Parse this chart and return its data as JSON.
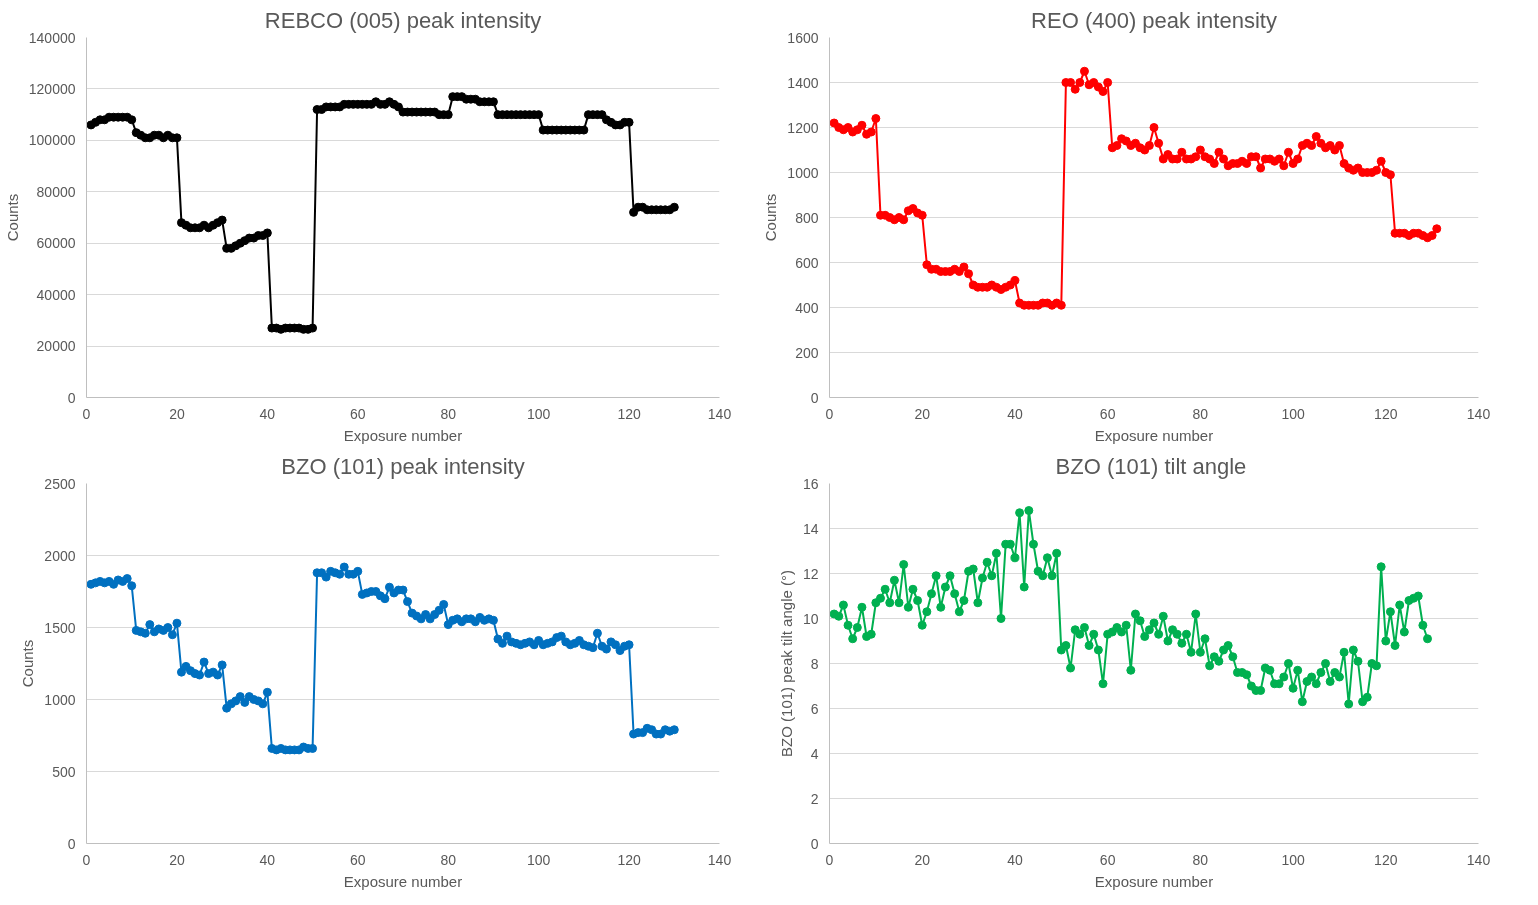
{
  "chart_data": [
    {
      "type": "line",
      "title": "REBCO (005) peak intensity",
      "xlabel": "Exposure number",
      "ylabel": "Counts",
      "xlim": [
        0,
        140
      ],
      "xticks": [
        0,
        20,
        40,
        60,
        80,
        100,
        120,
        140
      ],
      "ylim": [
        0,
        140000
      ],
      "yticks": [
        0,
        20000,
        40000,
        60000,
        80000,
        100000,
        120000,
        140000
      ],
      "grid": "y",
      "marker": "circle",
      "x": [
        1,
        2,
        3,
        4,
        5,
        6,
        7,
        8,
        9,
        10,
        11,
        12,
        13,
        14,
        15,
        16,
        17,
        18,
        19,
        20,
        21,
        22,
        23,
        24,
        25,
        26,
        27,
        28,
        29,
        30,
        31,
        32,
        33,
        34,
        35,
        36,
        37,
        38,
        39,
        40,
        41,
        42,
        43,
        44,
        45,
        46,
        47,
        48,
        49,
        50,
        51,
        52,
        53,
        54,
        55,
        56,
        57,
        58,
        59,
        60,
        61,
        62,
        63,
        64,
        65,
        66,
        67,
        68,
        69,
        70,
        71,
        72,
        73,
        74,
        75,
        76,
        77,
        78,
        79,
        80,
        81,
        82,
        83,
        84,
        85,
        86,
        87,
        88,
        89,
        90,
        91,
        92,
        93,
        94,
        95,
        96,
        97,
        98,
        99,
        100,
        101,
        102,
        103,
        104,
        105,
        106,
        107,
        108,
        109,
        110,
        111,
        112,
        113,
        114,
        115,
        116,
        117,
        118,
        119,
        120,
        121,
        122,
        123,
        124,
        125,
        126,
        127,
        128,
        129,
        130
      ],
      "series": [
        {
          "color": "#000000",
          "values": [
            106000,
            107000,
            108000,
            108000,
            109000,
            109000,
            109000,
            109000,
            109000,
            108000,
            103000,
            102000,
            101000,
            101000,
            102000,
            102000,
            101000,
            102000,
            101000,
            101000,
            68000,
            67000,
            66000,
            66000,
            66000,
            67000,
            66000,
            67000,
            68000,
            69000,
            58000,
            58000,
            59000,
            60000,
            61000,
            62000,
            62000,
            63000,
            63000,
            64000,
            27000,
            27000,
            26500,
            27000,
            27000,
            27000,
            27000,
            26500,
            26500,
            27000,
            112000,
            112000,
            113000,
            113000,
            113000,
            113000,
            114000,
            114000,
            114000,
            114000,
            114000,
            114000,
            114000,
            115000,
            114000,
            114000,
            115000,
            114000,
            113000,
            111000,
            111000,
            111000,
            111000,
            111000,
            111000,
            111000,
            111000,
            110000,
            110000,
            110000,
            117000,
            117000,
            117000,
            116000,
            116000,
            116000,
            115000,
            115000,
            115000,
            115000,
            110000,
            110000,
            110000,
            110000,
            110000,
            110000,
            110000,
            110000,
            110000,
            110000,
            104000,
            104000,
            104000,
            104000,
            104000,
            104000,
            104000,
            104000,
            104000,
            104000,
            110000,
            110000,
            110000,
            110000,
            108000,
            107000,
            106000,
            106000,
            107000,
            107000,
            72000,
            74000,
            74000,
            73000,
            73000,
            73000,
            73000,
            73000,
            73000,
            74000
          ]
        }
      ]
    },
    {
      "type": "line",
      "title": "REO (400) peak intensity",
      "xlabel": "Exposure number",
      "ylabel": "Counts",
      "xlim": [
        0,
        140
      ],
      "xticks": [
        0,
        20,
        40,
        60,
        80,
        100,
        120,
        140
      ],
      "ylim": [
        0,
        1600
      ],
      "yticks": [
        0,
        200,
        400,
        600,
        800,
        1000,
        1200,
        1400,
        1600
      ],
      "grid": "y",
      "marker": "circle",
      "x": [
        1,
        2,
        3,
        4,
        5,
        6,
        7,
        8,
        9,
        10,
        11,
        12,
        13,
        14,
        15,
        16,
        17,
        18,
        19,
        20,
        21,
        22,
        23,
        24,
        25,
        26,
        27,
        28,
        29,
        30,
        31,
        32,
        33,
        34,
        35,
        36,
        37,
        38,
        39,
        40,
        41,
        42,
        43,
        44,
        45,
        46,
        47,
        48,
        49,
        50,
        51,
        52,
        53,
        54,
        55,
        56,
        57,
        58,
        59,
        60,
        61,
        62,
        63,
        64,
        65,
        66,
        67,
        68,
        69,
        70,
        71,
        72,
        73,
        74,
        75,
        76,
        77,
        78,
        79,
        80,
        81,
        82,
        83,
        84,
        85,
        86,
        87,
        88,
        89,
        90,
        91,
        92,
        93,
        94,
        95,
        96,
        97,
        98,
        99,
        100,
        101,
        102,
        103,
        104,
        105,
        106,
        107,
        108,
        109,
        110,
        111,
        112,
        113,
        114,
        115,
        116,
        117,
        118,
        119,
        120,
        121,
        122,
        123,
        124,
        125,
        126,
        127,
        128,
        129,
        130,
        131
      ],
      "series": [
        {
          "color": "#ff0000",
          "values": [
            1220,
            1200,
            1190,
            1200,
            1180,
            1190,
            1210,
            1170,
            1180,
            1240,
            810,
            810,
            800,
            790,
            800,
            790,
            830,
            840,
            820,
            810,
            590,
            570,
            570,
            560,
            560,
            560,
            570,
            560,
            580,
            550,
            500,
            490,
            490,
            490,
            500,
            490,
            480,
            490,
            500,
            520,
            420,
            410,
            410,
            410,
            410,
            420,
            420,
            410,
            420,
            410,
            1400,
            1400,
            1370,
            1400,
            1450,
            1390,
            1400,
            1380,
            1360,
            1400,
            1110,
            1120,
            1150,
            1140,
            1120,
            1130,
            1110,
            1100,
            1120,
            1200,
            1130,
            1060,
            1080,
            1060,
            1060,
            1090,
            1060,
            1060,
            1070,
            1100,
            1070,
            1060,
            1040,
            1090,
            1060,
            1030,
            1040,
            1040,
            1050,
            1040,
            1070,
            1070,
            1020,
            1060,
            1060,
            1050,
            1060,
            1030,
            1090,
            1040,
            1060,
            1120,
            1130,
            1120,
            1160,
            1130,
            1110,
            1120,
            1100,
            1120,
            1040,
            1020,
            1010,
            1020,
            1000,
            1000,
            1000,
            1010,
            1050,
            1000,
            990,
            730,
            730,
            730,
            720,
            730,
            730,
            720,
            710,
            720,
            750
          ]
        }
      ]
    },
    {
      "type": "line",
      "title": "BZO (101) peak intensity",
      "xlabel": "Exposure number",
      "ylabel": "Counts",
      "xlim": [
        0,
        140
      ],
      "xticks": [
        0,
        20,
        40,
        60,
        80,
        100,
        120,
        140
      ],
      "ylim": [
        0,
        2500
      ],
      "yticks": [
        0,
        500,
        1000,
        1500,
        2000,
        2500
      ],
      "grid": "y",
      "marker": "circle",
      "x": [
        1,
        2,
        3,
        4,
        5,
        6,
        7,
        8,
        9,
        10,
        11,
        12,
        13,
        14,
        15,
        16,
        17,
        18,
        19,
        20,
        21,
        22,
        23,
        24,
        25,
        26,
        27,
        28,
        29,
        30,
        31,
        32,
        33,
        34,
        35,
        36,
        37,
        38,
        39,
        40,
        41,
        42,
        43,
        44,
        45,
        46,
        47,
        48,
        49,
        50,
        51,
        52,
        53,
        54,
        55,
        56,
        57,
        58,
        59,
        60,
        61,
        62,
        63,
        64,
        65,
        66,
        67,
        68,
        69,
        70,
        71,
        72,
        73,
        74,
        75,
        76,
        77,
        78,
        79,
        80,
        81,
        82,
        83,
        84,
        85,
        86,
        87,
        88,
        89,
        90,
        91,
        92,
        93,
        94,
        95,
        96,
        97,
        98,
        99,
        100,
        101,
        102,
        103,
        104,
        105,
        106,
        107,
        108,
        109,
        110,
        111,
        112,
        113,
        114,
        115,
        116,
        117,
        118,
        119,
        120,
        121,
        122,
        123,
        124,
        125,
        126,
        127,
        128,
        129,
        130
      ],
      "series": [
        {
          "color": "#0070c0",
          "values": [
            1800,
            1810,
            1820,
            1810,
            1820,
            1800,
            1830,
            1820,
            1840,
            1790,
            1480,
            1470,
            1460,
            1520,
            1470,
            1490,
            1480,
            1500,
            1450,
            1530,
            1190,
            1230,
            1200,
            1180,
            1170,
            1260,
            1180,
            1190,
            1170,
            1240,
            940,
            970,
            990,
            1020,
            980,
            1020,
            1000,
            990,
            970,
            1050,
            660,
            650,
            660,
            650,
            650,
            650,
            650,
            670,
            660,
            660,
            1880,
            1880,
            1850,
            1890,
            1880,
            1870,
            1920,
            1870,
            1870,
            1890,
            1730,
            1740,
            1750,
            1750,
            1720,
            1700,
            1780,
            1740,
            1760,
            1760,
            1680,
            1600,
            1580,
            1560,
            1590,
            1560,
            1590,
            1620,
            1660,
            1520,
            1550,
            1560,
            1540,
            1560,
            1560,
            1540,
            1570,
            1550,
            1560,
            1550,
            1420,
            1390,
            1440,
            1400,
            1390,
            1380,
            1390,
            1400,
            1380,
            1410,
            1380,
            1390,
            1400,
            1430,
            1440,
            1400,
            1380,
            1390,
            1410,
            1380,
            1370,
            1360,
            1460,
            1370,
            1350,
            1400,
            1380,
            1340,
            1370,
            1380,
            760,
            770,
            770,
            800,
            790,
            760,
            760,
            790,
            780,
            790
          ]
        }
      ]
    },
    {
      "type": "line",
      "title": "BZO (101)  tilt angle",
      "xlabel": "Exposure number",
      "ylabel": "BZO (101) peak tilt angle (°)",
      "xlim": [
        0,
        140
      ],
      "xticks": [
        0,
        20,
        40,
        60,
        80,
        100,
        120,
        140
      ],
      "ylim": [
        0,
        16
      ],
      "yticks": [
        0,
        2,
        4,
        6,
        8,
        10,
        12,
        14,
        16
      ],
      "grid": "y",
      "marker": "circle",
      "x": [
        1,
        2,
        3,
        4,
        5,
        6,
        7,
        8,
        9,
        10,
        11,
        12,
        13,
        14,
        15,
        16,
        17,
        18,
        19,
        20,
        21,
        22,
        23,
        24,
        25,
        26,
        27,
        28,
        29,
        30,
        31,
        32,
        33,
        34,
        35,
        36,
        37,
        38,
        39,
        40,
        41,
        42,
        43,
        44,
        45,
        46,
        47,
        48,
        49,
        50,
        51,
        52,
        53,
        54,
        55,
        56,
        57,
        58,
        59,
        60,
        61,
        62,
        63,
        64,
        65,
        66,
        67,
        68,
        69,
        70,
        71,
        72,
        73,
        74,
        75,
        76,
        77,
        78,
        79,
        80,
        81,
        82,
        83,
        84,
        85,
        86,
        87,
        88,
        89,
        90,
        91,
        92,
        93,
        94,
        95,
        96,
        97,
        98,
        99,
        100,
        101,
        102,
        103,
        104,
        105,
        106,
        107,
        108,
        109,
        110,
        111,
        112,
        113,
        114,
        115,
        116,
        117,
        118,
        119,
        120,
        121,
        122,
        123,
        124,
        125,
        126,
        127,
        128,
        129
      ],
      "series": [
        {
          "color": "#00b050",
          "values": [
            10.2,
            10.1,
            10.6,
            9.7,
            9.1,
            9.6,
            10.5,
            9.2,
            9.3,
            10.7,
            10.9,
            11.3,
            10.7,
            11.7,
            10.7,
            12.4,
            10.5,
            11.3,
            10.8,
            9.7,
            10.3,
            11.1,
            11.9,
            10.5,
            11.4,
            11.9,
            11.1,
            10.3,
            10.8,
            12.1,
            12.2,
            10.7,
            11.8,
            12.5,
            11.9,
            12.9,
            10.0,
            13.3,
            13.3,
            12.7,
            14.7,
            11.4,
            14.8,
            13.3,
            12.1,
            11.9,
            12.7,
            11.9,
            12.9,
            8.6,
            8.8,
            7.8,
            9.5,
            9.3,
            9.6,
            8.8,
            9.3,
            8.6,
            7.1,
            9.3,
            9.4,
            9.6,
            9.4,
            9.7,
            7.7,
            10.2,
            9.9,
            9.2,
            9.5,
            9.8,
            9.3,
            10.1,
            9.0,
            9.5,
            9.3,
            8.9,
            9.3,
            8.5,
            10.2,
            8.5,
            9.1,
            7.9,
            8.3,
            8.1,
            8.6,
            8.8,
            8.3,
            7.6,
            7.6,
            7.5,
            7.0,
            6.8,
            6.8,
            7.8,
            7.7,
            7.1,
            7.1,
            7.4,
            8.0,
            6.9,
            7.7,
            6.3,
            7.2,
            7.4,
            7.1,
            7.6,
            8.0,
            7.2,
            7.6,
            7.4,
            8.5,
            6.2,
            8.6,
            8.1,
            6.3,
            6.5,
            8.0,
            7.9,
            12.3,
            9.0,
            10.3,
            8.8,
            10.6,
            9.4,
            10.8,
            10.9,
            11.0,
            9.7,
            9.1
          ]
        }
      ]
    }
  ]
}
